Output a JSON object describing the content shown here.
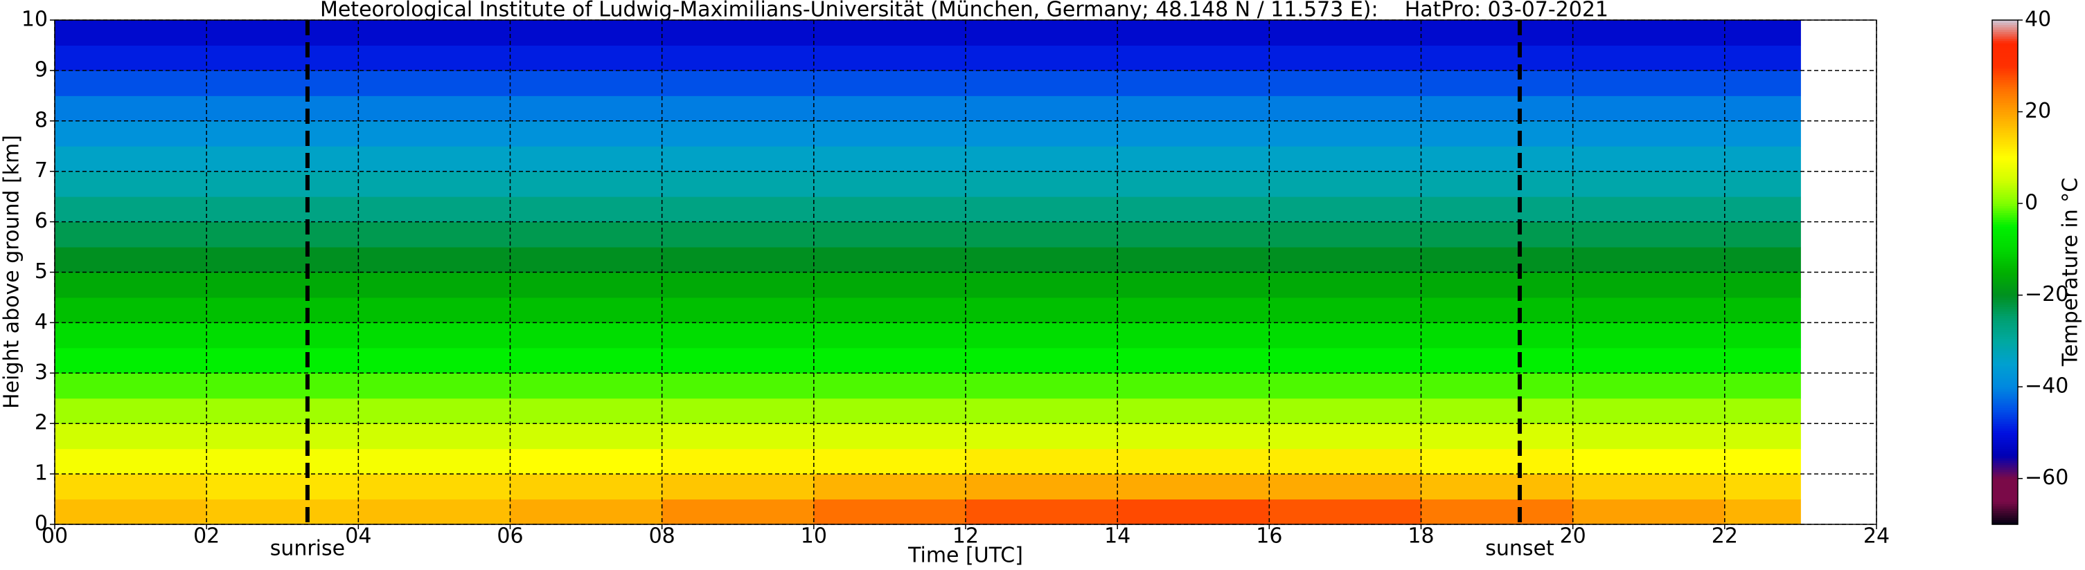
{
  "chart_data": {
    "type": "heatmap",
    "title": "Meteorological Institute of Ludwig-Maximilians-Universität (München, Germany; 48.148 N / 11.573 E):    HatPro: 03-07-2021",
    "xlabel": "Time [UTC]",
    "ylabel": "Height above ground [km]",
    "colorbar_label": "Temperature in °C",
    "xlim": [
      0,
      24
    ],
    "ylim": [
      0,
      10
    ],
    "xticks": [
      {
        "value": 0,
        "label": "00"
      },
      {
        "value": 2,
        "label": "02"
      },
      {
        "value": 4,
        "label": "04"
      },
      {
        "value": 6,
        "label": "06"
      },
      {
        "value": 8,
        "label": "08"
      },
      {
        "value": 10,
        "label": "10"
      },
      {
        "value": 12,
        "label": "12"
      },
      {
        "value": 14,
        "label": "14"
      },
      {
        "value": 16,
        "label": "16"
      },
      {
        "value": 18,
        "label": "18"
      },
      {
        "value": 20,
        "label": "20"
      },
      {
        "value": 22,
        "label": "22"
      },
      {
        "value": 24,
        "label": "24"
      }
    ],
    "yticks": [
      0,
      1,
      2,
      3,
      4,
      5,
      6,
      7,
      8,
      9,
      10
    ],
    "clim": [
      -70,
      40
    ],
    "cticks": [
      40,
      20,
      0,
      {
        "value": -20,
        "label": "−20"
      },
      {
        "value": -40,
        "label": "−40"
      },
      {
        "value": -60,
        "label": "−60"
      }
    ],
    "colormap": [
      "#000010",
      "#7a0a48",
      "#7a0a48",
      "#0000b4",
      "#0010e0",
      "#0050e8",
      "#0088e0",
      "#00a0d0",
      "#00a8a0",
      "#00a070",
      "#009020",
      "#00b000",
      "#00d800",
      "#00f000",
      "#80ff00",
      "#d0ff00",
      "#ffff00",
      "#ffd000",
      "#ffa000",
      "#ff7000",
      "#ff3000",
      "#ff2800",
      "#d0c8d8"
    ],
    "grid": true,
    "x_edges": [
      0,
      2,
      4,
      6,
      8,
      10,
      12,
      14,
      16,
      18,
      20,
      22,
      23
    ],
    "y_edges": [
      0,
      0.5,
      1,
      1.5,
      2,
      2.5,
      3,
      3.5,
      4,
      4.5,
      5,
      5.5,
      6,
      6.5,
      7,
      7.5,
      8,
      8.5,
      9,
      9.5,
      10
    ],
    "z": [
      [
        17,
        16,
        17,
        19,
        22,
        25,
        27,
        28,
        27,
        24,
        20,
        18
      ],
      [
        14,
        13,
        14,
        15,
        16,
        18,
        19,
        19,
        19,
        17,
        15,
        14
      ],
      [
        9,
        9,
        9,
        10,
        11,
        11,
        12,
        12,
        12,
        11,
        10,
        10
      ],
      [
        5,
        5,
        5,
        5,
        6,
        6,
        6,
        6,
        6,
        6,
        5,
        5
      ],
      [
        2,
        2,
        2,
        2,
        2,
        2,
        2,
        2,
        2,
        2,
        2,
        2
      ],
      [
        -2,
        -2,
        -2,
        -2,
        -2,
        -2,
        -2,
        -2,
        -2,
        -2,
        -2,
        -2
      ],
      [
        -5,
        -5,
        -5,
        -5,
        -5,
        -5,
        -5,
        -5,
        -5,
        -5,
        -5,
        -5
      ],
      [
        -9,
        -9,
        -9,
        -9,
        -9,
        -9,
        -9,
        -9,
        -9,
        -9,
        -9,
        -9
      ],
      [
        -13,
        -13,
        -13,
        -13,
        -13,
        -13,
        -13,
        -13,
        -13,
        -13,
        -13,
        -13
      ],
      [
        -16,
        -16,
        -16,
        -16,
        -16,
        -16,
        -16,
        -16,
        -16,
        -16,
        -16,
        -16
      ],
      [
        -20,
        -20,
        -20,
        -20,
        -20,
        -20,
        -20,
        -20,
        -20,
        -20,
        -20,
        -20
      ],
      [
        -23,
        -23,
        -23,
        -23,
        -23,
        -23,
        -23,
        -23,
        -23,
        -23,
        -23,
        -23
      ],
      [
        -27,
        -27,
        -27,
        -27,
        -27,
        -27,
        -27,
        -27,
        -27,
        -27,
        -27,
        -27
      ],
      [
        -31,
        -31,
        -31,
        -31,
        -31,
        -31,
        -31,
        -31,
        -31,
        -31,
        -31,
        -31
      ],
      [
        -34,
        -34,
        -34,
        -34,
        -34,
        -34,
        -34,
        -34,
        -34,
        -34,
        -34,
        -34
      ],
      [
        -38,
        -38,
        -38,
        -38,
        -38,
        -38,
        -38,
        -38,
        -38,
        -38,
        -38,
        -38
      ],
      [
        -41,
        -41,
        -41,
        -41,
        -41,
        -41,
        -41,
        -41,
        -41,
        -41,
        -41,
        -41
      ],
      [
        -45,
        -45,
        -45,
        -45,
        -45,
        -45,
        -45,
        -45,
        -45,
        -45,
        -45,
        -45
      ],
      [
        -49,
        -49,
        -49,
        -49,
        -49,
        -49,
        -49,
        -49,
        -49,
        -49,
        -49,
        -49
      ],
      [
        -52,
        -52,
        -52,
        -52,
        -52,
        -52,
        -52,
        -52,
        -52,
        -52,
        -52,
        -52
      ]
    ],
    "annotations": [
      {
        "x": 3.33,
        "label": "sunrise"
      },
      {
        "x": 19.3,
        "label": "sunset"
      }
    ]
  }
}
